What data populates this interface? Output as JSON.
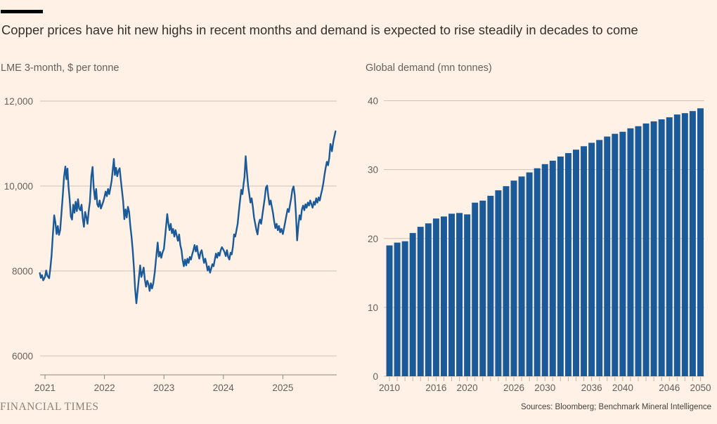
{
  "page": {
    "title": "Copper prices have hit new highs in recent months and demand is expected to rise steadily in decades to come",
    "brand": "FINANCIAL TIMES",
    "source_note": "Sources: Bloomberg; Benchmark Mineral Intelligence"
  },
  "colors": {
    "background": "#FFF1E5",
    "series_blue": "#1A5A99",
    "title_text": "#33302E",
    "muted_text": "#66605C",
    "gridline": "#CDC2B4",
    "axis": "#8F8679",
    "bar_tick": "#BFB4A4",
    "brand_text": "#8A8274",
    "source_text": "#45413C",
    "top_rule": "#000000"
  },
  "chart_data": [
    {
      "type": "line",
      "title": "LME 3-month, $ per tonne",
      "series_name": "LME copper 3-month price",
      "x_tick_years": [
        2021,
        2022,
        2023,
        2024,
        2025
      ],
      "x_tick_labels": [
        "2021",
        "2022",
        "2023",
        "2024",
        "2025"
      ],
      "y_ticks": [
        6000,
        8000,
        10000,
        12000
      ],
      "y_tick_labels": [
        "6000",
        "8000",
        "10,000",
        "12,000"
      ],
      "xlim": [
        2020.91,
        2025.91
      ],
      "ylim": [
        5550,
        12000
      ],
      "grid": "horizontal",
      "points": [
        [
          2020.914,
          7950
        ],
        [
          2020.93,
          7840
        ],
        [
          2020.95,
          7900
        ],
        [
          2020.97,
          7780
        ],
        [
          2021.0,
          7860
        ],
        [
          2021.02,
          8010
        ],
        [
          2021.04,
          7890
        ],
        [
          2021.07,
          7830
        ],
        [
          2021.09,
          8060
        ],
        [
          2021.11,
          8350
        ],
        [
          2021.13,
          8800
        ],
        [
          2021.155,
          9310
        ],
        [
          2021.175,
          9140
        ],
        [
          2021.195,
          8870
        ],
        [
          2021.215,
          9060
        ],
        [
          2021.235,
          8850
        ],
        [
          2021.255,
          8960
        ],
        [
          2021.275,
          9330
        ],
        [
          2021.3,
          9800
        ],
        [
          2021.32,
          10220
        ],
        [
          2021.343,
          10460
        ],
        [
          2021.36,
          10160
        ],
        [
          2021.378,
          10410
        ],
        [
          2021.395,
          10000
        ],
        [
          2021.415,
          9690
        ],
        [
          2021.435,
          9280
        ],
        [
          2021.455,
          9210
        ],
        [
          2021.475,
          9560
        ],
        [
          2021.495,
          9370
        ],
        [
          2021.515,
          9630
        ],
        [
          2021.535,
          9410
        ],
        [
          2021.555,
          9690
        ],
        [
          2021.575,
          9470
        ],
        [
          2021.595,
          9430
        ],
        [
          2021.615,
          9560
        ],
        [
          2021.635,
          9240
        ],
        [
          2021.655,
          9040
        ],
        [
          2021.675,
          9390
        ],
        [
          2021.695,
          9270
        ],
        [
          2021.715,
          9110
        ],
        [
          2021.735,
          9410
        ],
        [
          2021.755,
          9630
        ],
        [
          2021.78,
          10240
        ],
        [
          2021.8,
          10450
        ],
        [
          2021.82,
          9940
        ],
        [
          2021.84,
          9690
        ],
        [
          2021.86,
          9930
        ],
        [
          2021.88,
          9570
        ],
        [
          2021.9,
          9510
        ],
        [
          2021.92,
          9660
        ],
        [
          2021.94,
          9470
        ],
        [
          2021.96,
          9550
        ],
        [
          2021.98,
          9630
        ],
        [
          2022.0,
          9740
        ],
        [
          2022.02,
          9870
        ],
        [
          2022.04,
          9760
        ],
        [
          2022.06,
          9930
        ],
        [
          2022.08,
          9810
        ],
        [
          2022.1,
          9960
        ],
        [
          2022.12,
          10120
        ],
        [
          2022.14,
          10380
        ],
        [
          2022.158,
          10640
        ],
        [
          2022.175,
          10260
        ],
        [
          2022.195,
          10430
        ],
        [
          2022.215,
          10230
        ],
        [
          2022.235,
          10360
        ],
        [
          2022.255,
          10420
        ],
        [
          2022.275,
          10140
        ],
        [
          2022.295,
          9880
        ],
        [
          2022.315,
          9640
        ],
        [
          2022.335,
          9220
        ],
        [
          2022.355,
          9450
        ],
        [
          2022.375,
          9260
        ],
        [
          2022.395,
          9510
        ],
        [
          2022.415,
          9390
        ],
        [
          2022.435,
          9060
        ],
        [
          2022.455,
          8810
        ],
        [
          2022.475,
          8490
        ],
        [
          2022.495,
          8080
        ],
        [
          2022.515,
          7580
        ],
        [
          2022.537,
          7240
        ],
        [
          2022.557,
          7520
        ],
        [
          2022.577,
          7800
        ],
        [
          2022.6,
          8130
        ],
        [
          2022.62,
          7860
        ],
        [
          2022.64,
          7960
        ],
        [
          2022.66,
          8080
        ],
        [
          2022.68,
          7790
        ],
        [
          2022.7,
          7630
        ],
        [
          2022.72,
          7770
        ],
        [
          2022.74,
          7690
        ],
        [
          2022.76,
          7530
        ],
        [
          2022.78,
          7710
        ],
        [
          2022.8,
          7590
        ],
        [
          2022.82,
          7700
        ],
        [
          2022.845,
          7960
        ],
        [
          2022.87,
          8320
        ],
        [
          2022.895,
          8670
        ],
        [
          2022.915,
          8340
        ],
        [
          2022.935,
          8450
        ],
        [
          2022.955,
          8310
        ],
        [
          2022.975,
          8430
        ],
        [
          2023.0,
          8520
        ],
        [
          2023.03,
          8950
        ],
        [
          2023.055,
          9340
        ],
        [
          2023.075,
          9120
        ],
        [
          2023.095,
          8960
        ],
        [
          2023.115,
          9110
        ],
        [
          2023.135,
          8890
        ],
        [
          2023.155,
          8990
        ],
        [
          2023.175,
          8810
        ],
        [
          2023.195,
          8960
        ],
        [
          2023.215,
          8830
        ],
        [
          2023.235,
          8710
        ],
        [
          2023.255,
          8860
        ],
        [
          2023.275,
          8610
        ],
        [
          2023.295,
          8490
        ],
        [
          2023.315,
          8260
        ],
        [
          2023.335,
          8110
        ],
        [
          2023.355,
          8270
        ],
        [
          2023.375,
          8130
        ],
        [
          2023.395,
          8290
        ],
        [
          2023.415,
          8190
        ],
        [
          2023.435,
          8330
        ],
        [
          2023.455,
          8270
        ],
        [
          2023.475,
          8390
        ],
        [
          2023.495,
          8490
        ],
        [
          2023.515,
          8610
        ],
        [
          2023.535,
          8460
        ],
        [
          2023.555,
          8590
        ],
        [
          2023.575,
          8410
        ],
        [
          2023.595,
          8290
        ],
        [
          2023.615,
          8430
        ],
        [
          2023.635,
          8490
        ],
        [
          2023.655,
          8330
        ],
        [
          2023.675,
          8190
        ],
        [
          2023.695,
          8290
        ],
        [
          2023.715,
          8160
        ],
        [
          2023.735,
          8010
        ],
        [
          2023.755,
          8110
        ],
        [
          2023.775,
          7960
        ],
        [
          2023.795,
          8060
        ],
        [
          2023.815,
          8160
        ],
        [
          2023.835,
          8110
        ],
        [
          2023.855,
          8260
        ],
        [
          2023.875,
          8410
        ],
        [
          2023.895,
          8310
        ],
        [
          2023.915,
          8430
        ],
        [
          2023.935,
          8360
        ],
        [
          2023.955,
          8490
        ],
        [
          2023.975,
          8560
        ],
        [
          2024.0,
          8500
        ],
        [
          2024.02,
          8440
        ],
        [
          2024.04,
          8350
        ],
        [
          2024.06,
          8490
        ],
        [
          2024.08,
          8330
        ],
        [
          2024.1,
          8270
        ],
        [
          2024.12,
          8430
        ],
        [
          2024.14,
          8390
        ],
        [
          2024.16,
          8560
        ],
        [
          2024.18,
          8860
        ],
        [
          2024.2,
          8810
        ],
        [
          2024.22,
          8960
        ],
        [
          2024.24,
          9110
        ],
        [
          2024.26,
          9400
        ],
        [
          2024.28,
          9660
        ],
        [
          2024.3,
          9910
        ],
        [
          2024.32,
          9810
        ],
        [
          2024.34,
          10060
        ],
        [
          2024.355,
          10210
        ],
        [
          2024.375,
          10700
        ],
        [
          2024.395,
          10340
        ],
        [
          2024.415,
          10010
        ],
        [
          2024.435,
          9810
        ],
        [
          2024.455,
          9610
        ],
        [
          2024.475,
          9710
        ],
        [
          2024.495,
          9510
        ],
        [
          2024.515,
          9260
        ],
        [
          2024.535,
          9110
        ],
        [
          2024.555,
          8960
        ],
        [
          2024.575,
          8860
        ],
        [
          2024.595,
          9110
        ],
        [
          2024.615,
          9210
        ],
        [
          2024.635,
          9110
        ],
        [
          2024.655,
          9310
        ],
        [
          2024.675,
          9510
        ],
        [
          2024.695,
          9710
        ],
        [
          2024.715,
          9960
        ],
        [
          2024.735,
          10010
        ],
        [
          2024.755,
          9760
        ],
        [
          2024.775,
          9560
        ],
        [
          2024.795,
          9660
        ],
        [
          2024.815,
          9510
        ],
        [
          2024.835,
          9360
        ],
        [
          2024.855,
          9160
        ],
        [
          2024.875,
          9010
        ],
        [
          2024.895,
          9110
        ],
        [
          2024.915,
          8960
        ],
        [
          2024.935,
          9060
        ],
        [
          2024.955,
          8910
        ],
        [
          2024.975,
          8990
        ],
        [
          2025.0,
          8870
        ],
        [
          2025.02,
          9010
        ],
        [
          2025.04,
          9160
        ],
        [
          2025.06,
          9310
        ],
        [
          2025.08,
          9460
        ],
        [
          2025.1,
          9390
        ],
        [
          2025.12,
          9560
        ],
        [
          2025.14,
          9710
        ],
        [
          2025.16,
          9910
        ],
        [
          2025.18,
          9990
        ],
        [
          2025.2,
          9790
        ],
        [
          2025.22,
          9340
        ],
        [
          2025.24,
          8720
        ],
        [
          2025.26,
          9060
        ],
        [
          2025.28,
          9310
        ],
        [
          2025.3,
          9210
        ],
        [
          2025.32,
          9450
        ],
        [
          2025.34,
          9540
        ],
        [
          2025.36,
          9430
        ],
        [
          2025.38,
          9570
        ],
        [
          2025.4,
          9490
        ],
        [
          2025.42,
          9610
        ],
        [
          2025.44,
          9540
        ],
        [
          2025.46,
          9660
        ],
        [
          2025.48,
          9570
        ],
        [
          2025.5,
          9490
        ],
        [
          2025.52,
          9630
        ],
        [
          2025.54,
          9560
        ],
        [
          2025.56,
          9710
        ],
        [
          2025.58,
          9610
        ],
        [
          2025.6,
          9730
        ],
        [
          2025.62,
          9660
        ],
        [
          2025.64,
          9790
        ],
        [
          2025.66,
          9910
        ],
        [
          2025.68,
          10060
        ],
        [
          2025.7,
          10260
        ],
        [
          2025.72,
          10430
        ],
        [
          2025.74,
          10570
        ],
        [
          2025.76,
          10490
        ],
        [
          2025.78,
          10660
        ],
        [
          2025.8,
          10990
        ],
        [
          2025.825,
          10820
        ],
        [
          2025.85,
          11060
        ],
        [
          2025.885,
          11290
        ]
      ]
    },
    {
      "type": "bar",
      "title": "Global demand (mn tonnes)",
      "series_name": "Global copper demand",
      "years": [
        2010,
        2011,
        2012,
        2013,
        2014,
        2015,
        2016,
        2017,
        2018,
        2019,
        2020,
        2021,
        2022,
        2023,
        2024,
        2025,
        2026,
        2027,
        2028,
        2029,
        2030,
        2031,
        2032,
        2033,
        2034,
        2035,
        2036,
        2037,
        2038,
        2039,
        2040,
        2041,
        2042,
        2043,
        2044,
        2045,
        2046,
        2047,
        2048,
        2049,
        2050
      ],
      "values": [
        19.0,
        19.4,
        19.6,
        20.8,
        21.7,
        22.2,
        22.9,
        23.2,
        23.6,
        23.7,
        23.5,
        25.2,
        25.5,
        26.2,
        27.0,
        27.6,
        28.4,
        29.0,
        29.6,
        30.2,
        30.8,
        31.3,
        31.9,
        32.4,
        32.9,
        33.4,
        33.9,
        34.3,
        34.8,
        35.2,
        35.5,
        36.0,
        36.3,
        36.7,
        37.0,
        37.3,
        37.6,
        38.0,
        38.2,
        38.5,
        38.9
      ],
      "x_tick_years": [
        2010,
        2016,
        2020,
        2026,
        2030,
        2036,
        2040,
        2046,
        2050
      ],
      "x_tick_labels": [
        "2010",
        "2016",
        "2020",
        "2026",
        "2030",
        "2036",
        "2040",
        "2046",
        "2050"
      ],
      "y_ticks": [
        0,
        10,
        20,
        30,
        40
      ],
      "y_tick_labels": [
        "0",
        "10",
        "20",
        "30",
        "40"
      ],
      "ylim": [
        0,
        40
      ],
      "grid": "horizontal"
    }
  ]
}
